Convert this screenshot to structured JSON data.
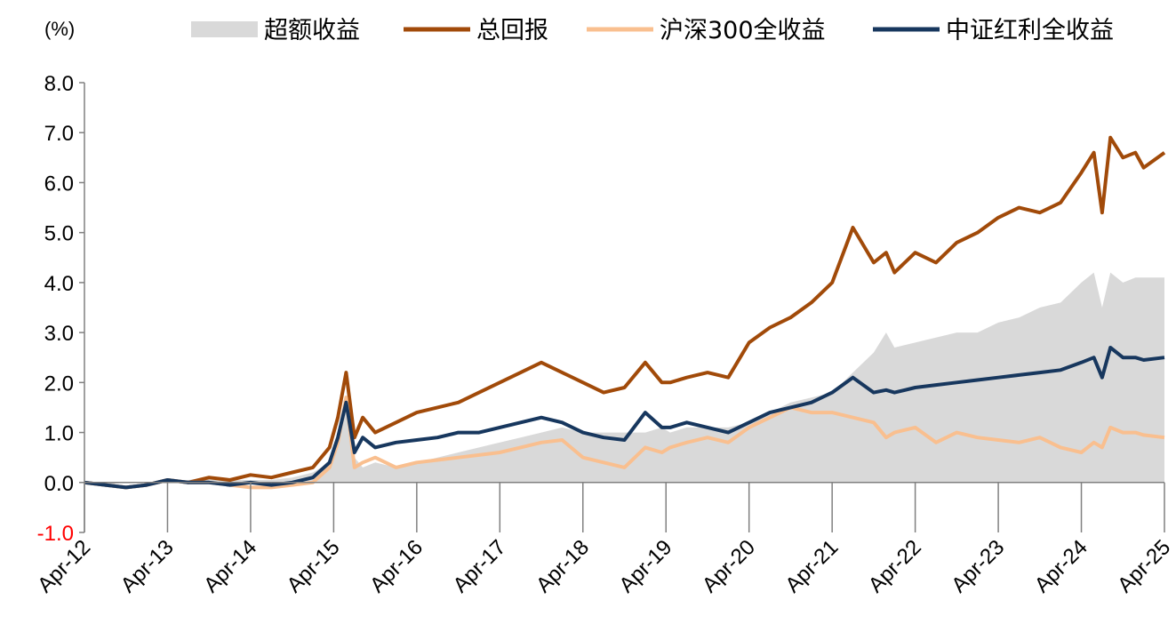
{
  "chart_data": {
    "type": "area",
    "unit_label": "(%)",
    "ylim": [
      -1.0,
      8.0
    ],
    "y_ticks": [
      "8.0",
      "7.0",
      "6.0",
      "5.0",
      "4.0",
      "3.0",
      "2.0",
      "1.0",
      "0.0",
      "-1.0"
    ],
    "x_ticks": [
      "Apr-12",
      "Apr-13",
      "Apr-14",
      "Apr-15",
      "Apr-16",
      "Apr-17",
      "Apr-18",
      "Apr-19",
      "Apr-20",
      "Apr-21",
      "Apr-22",
      "Apr-23",
      "Apr-24",
      "Apr-25"
    ],
    "x": [
      2012.25,
      2012.5,
      2012.75,
      2013.0,
      2013.25,
      2013.5,
      2013.75,
      2014.0,
      2014.25,
      2014.5,
      2014.75,
      2015.0,
      2015.2,
      2015.3,
      2015.4,
      2015.5,
      2015.6,
      2015.75,
      2016.0,
      2016.25,
      2016.5,
      2016.75,
      2017.0,
      2017.25,
      2017.5,
      2017.75,
      2018.0,
      2018.25,
      2018.5,
      2018.75,
      2019.0,
      2019.2,
      2019.3,
      2019.5,
      2019.75,
      2020.0,
      2020.25,
      2020.5,
      2020.75,
      2021.0,
      2021.25,
      2021.5,
      2021.75,
      2021.9,
      2022.0,
      2022.25,
      2022.5,
      2022.75,
      2023.0,
      2023.25,
      2023.5,
      2023.75,
      2024.0,
      2024.25,
      2024.4,
      2024.5,
      2024.6,
      2024.75,
      2024.9,
      2025.0,
      2025.25
    ],
    "series": [
      {
        "name": "超额收益",
        "type": "area",
        "color": "#d9d9d9",
        "values": [
          0.0,
          -0.05,
          0.0,
          0.0,
          0.05,
          0.05,
          0.1,
          0.05,
          0.05,
          0.05,
          0.1,
          0.2,
          0.4,
          0.8,
          1.5,
          0.5,
          0.3,
          0.4,
          0.3,
          0.4,
          0.5,
          0.6,
          0.7,
          0.8,
          0.9,
          1.0,
          1.1,
          1.0,
          1.0,
          1.0,
          1.0,
          1.1,
          1.0,
          1.1,
          1.1,
          1.1,
          1.2,
          1.4,
          1.6,
          1.7,
          1.8,
          2.2,
          2.6,
          3.0,
          2.7,
          2.8,
          2.9,
          3.0,
          3.0,
          3.2,
          3.3,
          3.5,
          3.6,
          4.0,
          4.2,
          3.5,
          4.2,
          4.0,
          4.1,
          4.1,
          4.1
        ]
      },
      {
        "name": "总回报",
        "type": "line",
        "color": "#a14a09",
        "values": [
          0.0,
          -0.05,
          -0.1,
          -0.05,
          0.05,
          0.0,
          0.1,
          0.05,
          0.15,
          0.1,
          0.2,
          0.3,
          0.7,
          1.3,
          2.2,
          0.9,
          1.3,
          1.0,
          1.2,
          1.4,
          1.5,
          1.6,
          1.8,
          2.0,
          2.2,
          2.4,
          2.2,
          2.0,
          1.8,
          1.9,
          2.4,
          2.0,
          2.0,
          2.1,
          2.2,
          2.1,
          2.8,
          3.1,
          3.3,
          3.6,
          4.0,
          5.1,
          4.4,
          4.6,
          4.2,
          4.6,
          4.4,
          4.8,
          5.0,
          5.3,
          5.5,
          5.4,
          5.6,
          6.2,
          6.6,
          5.4,
          6.9,
          6.5,
          6.6,
          6.3,
          6.6
        ]
      },
      {
        "name": "沪深300全收益",
        "type": "line",
        "color": "#f9bf8f",
        "values": [
          0.0,
          -0.05,
          -0.1,
          -0.05,
          0.05,
          0.0,
          0.0,
          -0.05,
          -0.1,
          -0.1,
          -0.05,
          0.0,
          0.3,
          0.8,
          1.7,
          0.3,
          0.4,
          0.5,
          0.3,
          0.4,
          0.45,
          0.5,
          0.55,
          0.6,
          0.7,
          0.8,
          0.85,
          0.5,
          0.4,
          0.3,
          0.7,
          0.6,
          0.7,
          0.8,
          0.9,
          0.8,
          1.1,
          1.3,
          1.5,
          1.4,
          1.4,
          1.3,
          1.2,
          0.9,
          1.0,
          1.1,
          0.8,
          1.0,
          0.9,
          0.85,
          0.8,
          0.9,
          0.7,
          0.6,
          0.8,
          0.7,
          1.1,
          1.0,
          1.0,
          0.95,
          0.9
        ]
      },
      {
        "name": "中证红利全收益",
        "type": "line",
        "color": "#17375e",
        "values": [
          0.0,
          -0.05,
          -0.1,
          -0.05,
          0.05,
          0.0,
          0.0,
          -0.05,
          0.0,
          -0.05,
          0.0,
          0.1,
          0.4,
          0.9,
          1.6,
          0.6,
          0.9,
          0.7,
          0.8,
          0.85,
          0.9,
          1.0,
          1.0,
          1.1,
          1.2,
          1.3,
          1.2,
          1.0,
          0.9,
          0.85,
          1.4,
          1.1,
          1.1,
          1.2,
          1.1,
          1.0,
          1.2,
          1.4,
          1.5,
          1.6,
          1.8,
          2.1,
          1.8,
          1.85,
          1.8,
          1.9,
          1.95,
          2.0,
          2.05,
          2.1,
          2.15,
          2.2,
          2.25,
          2.4,
          2.5,
          2.1,
          2.7,
          2.5,
          2.5,
          2.45,
          2.5
        ]
      }
    ],
    "legend_position": "top",
    "grid": false
  }
}
